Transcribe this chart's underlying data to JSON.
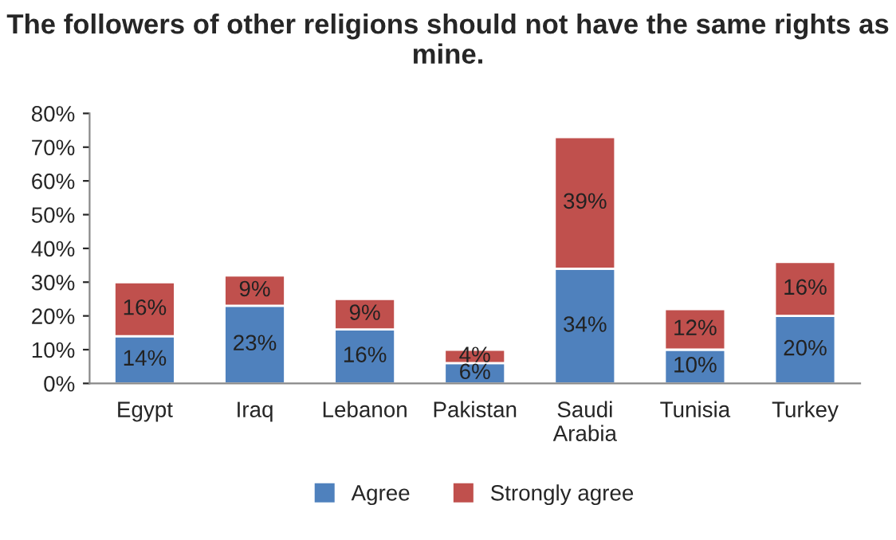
{
  "chart_data": {
    "type": "bar",
    "stacked": true,
    "title": "The followers of other religions should not have the same rights as mine.",
    "categories": [
      "Egypt",
      "Iraq",
      "Lebanon",
      "Pakistan",
      "Saudi Arabia",
      "Tunisia",
      "Turkey"
    ],
    "series": [
      {
        "name": "Agree",
        "color": "#4f81bd",
        "values": [
          14,
          23,
          16,
          6,
          34,
          10,
          20
        ],
        "value_labels": [
          "14%",
          "23%",
          "16%",
          "6%",
          "34%",
          "10%",
          "20%"
        ]
      },
      {
        "name": "Strongly agree",
        "color": "#c0504d",
        "values": [
          16,
          9,
          9,
          4,
          39,
          12,
          16
        ],
        "value_labels": [
          "16%",
          "9%",
          "9%",
          "4%",
          "39%",
          "12%",
          "16%"
        ]
      }
    ],
    "ylim": [
      0,
      80
    ],
    "yticks": [
      {
        "value": 0,
        "label": "0%"
      },
      {
        "value": 10,
        "label": "10%"
      },
      {
        "value": 20,
        "label": "20%"
      },
      {
        "value": 30,
        "label": "30%"
      },
      {
        "value": 40,
        "label": "40%"
      },
      {
        "value": 50,
        "label": "50%"
      },
      {
        "value": 60,
        "label": "60%"
      },
      {
        "value": 70,
        "label": "70%"
      },
      {
        "value": 80,
        "label": "80%"
      }
    ],
    "legend": "bottom",
    "grid": false
  }
}
